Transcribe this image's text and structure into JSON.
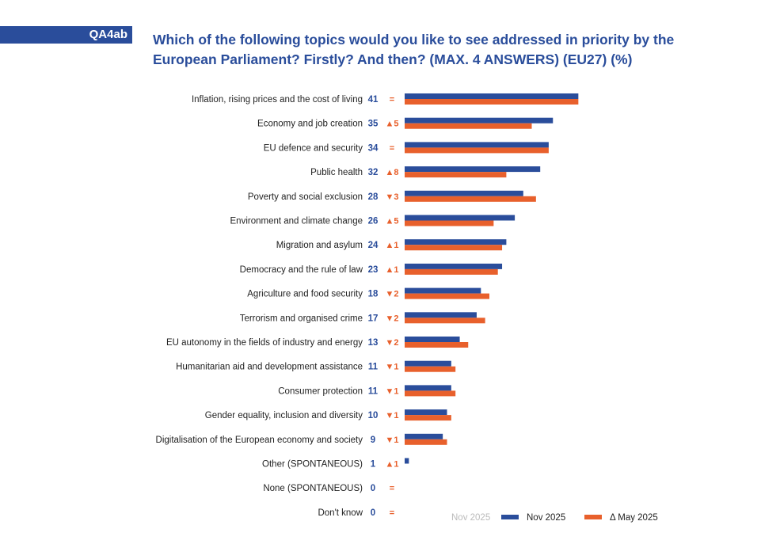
{
  "tag": "QA4ab",
  "title": "Which of the following topics would you like to see addressed in priority by the European Parliament? Firstly? And then? (MAX. 4 ANSWERS) (EU27) (%)",
  "colors": {
    "nov": "#2a4d9b",
    "may": "#e8602c",
    "text": "#222222"
  },
  "chart_data": {
    "type": "bar",
    "orientation": "horizontal",
    "title": "Which of the following topics would you like to see addressed in priority by the European Parliament? Firstly? And then? (MAX. 4 ANSWERS) (EU27) (%)",
    "unit": "%",
    "categories": [
      "Inflation, rising prices and the cost of living",
      "Economy and job creation",
      "EU defence and security",
      "Public health",
      "Poverty and social exclusion",
      "Environment and climate change",
      "Migration and asylum",
      "Democracy and the rule of law",
      "Agriculture and food security",
      "Terrorism and organised crime",
      "EU autonomy in the fields of industry and energy",
      "Humanitarian aid and development assistance",
      "Consumer protection",
      "Gender equality, inclusion and diversity",
      "Digitalisation of the European economy and society",
      "Other (SPONTANEOUS)",
      "None (SPONTANEOUS)",
      "Don't know"
    ],
    "series": [
      {
        "name": "Nov 2025",
        "values": [
          41,
          35,
          34,
          32,
          28,
          26,
          24,
          23,
          18,
          17,
          13,
          11,
          11,
          10,
          9,
          1,
          0,
          0
        ]
      },
      {
        "name": "May 2025",
        "values": [
          41,
          30,
          34,
          24,
          31,
          21,
          23,
          22,
          20,
          19,
          15,
          12,
          12,
          11,
          10,
          0,
          0,
          0
        ]
      }
    ],
    "value_labels": [
      "41",
      "35",
      "34",
      "32",
      "28",
      "26",
      "24",
      "23",
      "18",
      "17",
      "13",
      "11",
      "11",
      "10",
      "9",
      "1",
      "0",
      "0"
    ],
    "change_labels": [
      "=",
      "▲5",
      "=",
      "▲8",
      "▼3",
      "▲5",
      "▲1",
      "▲1",
      "▼2",
      "▼2",
      "▼2",
      "▼1",
      "▼1",
      "▼1",
      "▼1",
      "▲1",
      "=",
      "="
    ],
    "legend": {
      "position": "bottom-right",
      "faint_label": "Nov 2025",
      "items": [
        "Nov 2025",
        "Δ May 2025"
      ]
    }
  }
}
